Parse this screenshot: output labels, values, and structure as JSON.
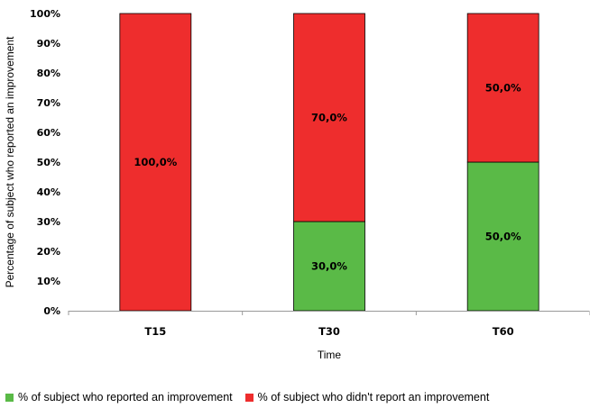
{
  "chart_data": {
    "type": "bar",
    "stacked": true,
    "categories": [
      "T15",
      "T30",
      "T60"
    ],
    "series": [
      {
        "name": "% of subject who reported an improvement",
        "values": [
          0,
          30,
          50
        ],
        "color": "#5aba47"
      },
      {
        "name": "% of subject who didn't report an improvement",
        "values": [
          100,
          70,
          50
        ],
        "color": "#ee2d2d"
      }
    ],
    "data_labels": [
      [
        "",
        "30,0%",
        "50,0%"
      ],
      [
        "100,0%",
        "70,0%",
        "50,0%"
      ]
    ],
    "y_ticks": [
      "0%",
      "10%",
      "20%",
      "30%",
      "40%",
      "50%",
      "60%",
      "70%",
      "80%",
      "90%",
      "100%"
    ],
    "xlabel": "Time",
    "ylabel": "Percentage of subject who reported an improvement",
    "ylim": [
      0,
      100
    ],
    "grid": false,
    "legend_position": "bottom"
  }
}
